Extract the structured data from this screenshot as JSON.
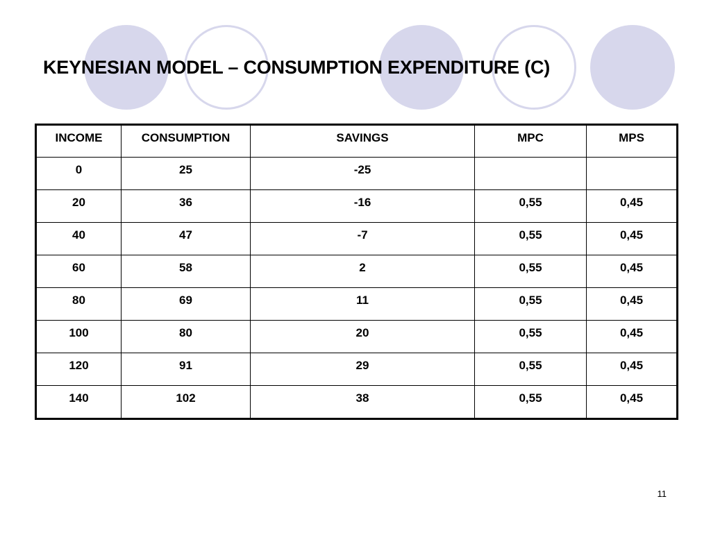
{
  "slide": {
    "title": "KEYNESIAN MODEL – CONSUMPTION EXPENDITURE (C)",
    "page_number": "11",
    "decoration_color": "#d7d7ec"
  },
  "table": {
    "headers": [
      "INCOME",
      "CONSUMPTION",
      "SAVINGS",
      "MPC",
      "MPS"
    ],
    "rows": [
      [
        "0",
        "25",
        "-25",
        "",
        ""
      ],
      [
        "20",
        "36",
        "-16",
        "0,55",
        "0,45"
      ],
      [
        "40",
        "47",
        "-7",
        "0,55",
        "0,45"
      ],
      [
        "60",
        "58",
        "2",
        "0,55",
        "0,45"
      ],
      [
        "80",
        "69",
        "11",
        "0,55",
        "0,45"
      ],
      [
        "100",
        "80",
        "20",
        "0,55",
        "0,45"
      ],
      [
        "120",
        "91",
        "29",
        "0,55",
        "0,45"
      ],
      [
        "140",
        "102",
        "38",
        "0,55",
        "0,45"
      ]
    ]
  }
}
